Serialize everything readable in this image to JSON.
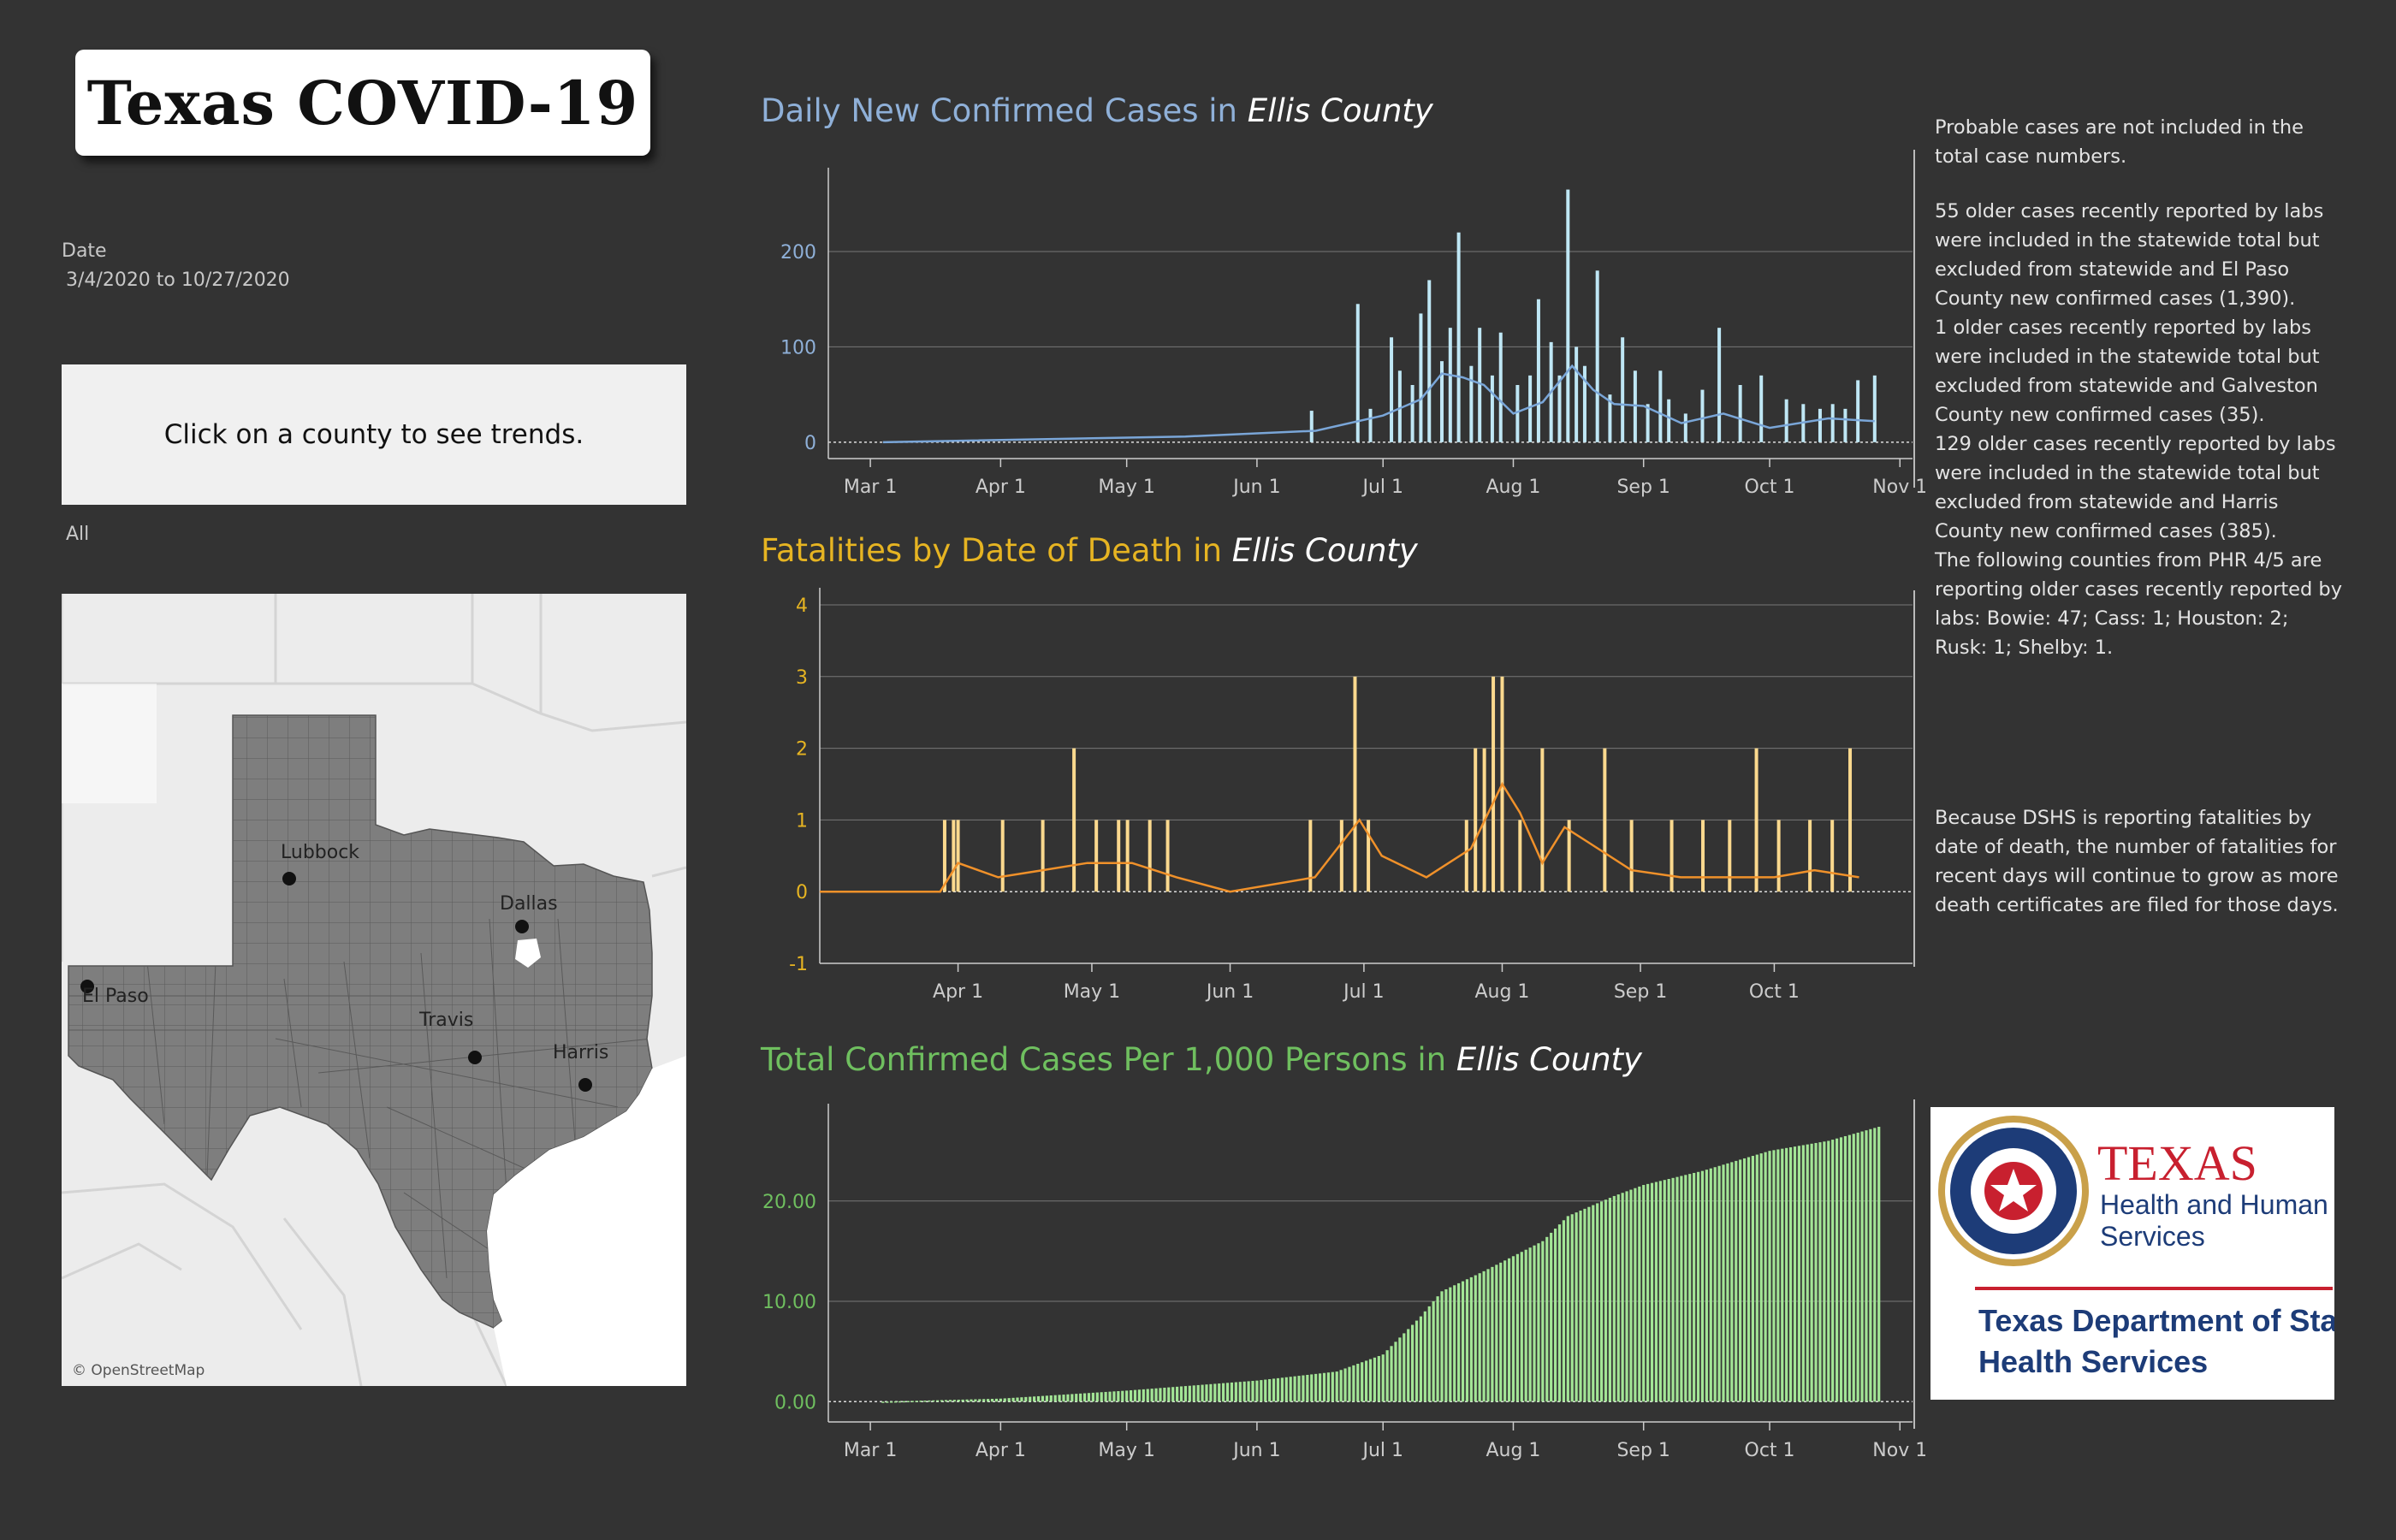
{
  "header": {
    "title": "Texas COVID-19"
  },
  "filters": {
    "date_label": "Date",
    "date_value": "3/4/2020 to 10/27/2020",
    "county_prompt": "Click on a county to see trends.",
    "county_value": "All"
  },
  "map": {
    "attribution": "© OpenStreetMap",
    "cities": [
      "Lubbock",
      "Dallas",
      "El Paso",
      "Travis",
      "Harris"
    ]
  },
  "colors": {
    "background": "#333333",
    "cases_title": "#8fb0d8",
    "cases_bar": "#bfe7f5",
    "cases_line": "#7aa6d8",
    "deaths_title": "#e6b422",
    "deaths_bar": "#fbd98e",
    "deaths_line": "#f0912a",
    "total_title": "#6fbf5f",
    "total_bar": "#a3e596",
    "axis": "#cccccc"
  },
  "charts": {
    "cases": {
      "title_prefix": "Daily New Confirmed Cases in ",
      "county": "Ellis County",
      "yticks": [
        "200",
        "100",
        "0"
      ],
      "xticks": [
        "Mar 1",
        "Apr 1",
        "May 1",
        "Jun 1",
        "Jul 1",
        "Aug 1",
        "Sep 1",
        "Oct 1",
        "Nov 1"
      ]
    },
    "deaths": {
      "title_prefix": "Fatalities by Date of Death in ",
      "county": "Ellis County",
      "yticks": [
        "4",
        "3",
        "2",
        "1",
        "0",
        "-1"
      ],
      "xticks": [
        "Apr 1",
        "May 1",
        "Jun 1",
        "Jul 1",
        "Aug 1",
        "Sep 1",
        "Oct 1"
      ]
    },
    "total": {
      "title_prefix": "Total Confirmed Cases Per 1,000 Persons in ",
      "county": "Ellis County",
      "yticks": [
        "20.00",
        "10.00",
        "0.00"
      ],
      "xticks": [
        "Mar 1",
        "Apr 1",
        "May 1",
        "Jun 1",
        "Jul 1",
        "Aug 1",
        "Sep 1",
        "Oct 1",
        "Nov 1"
      ]
    }
  },
  "chart_data": [
    {
      "type": "bar",
      "title": "Daily New Confirmed Cases in Ellis County",
      "ylim": [
        -10,
        270
      ],
      "xlim": [
        "2020-02-20",
        "2020-11-04"
      ],
      "series": [
        {
          "type": "bar",
          "points": [
            [
              "2020-06-14",
              33
            ],
            [
              "2020-06-25",
              145
            ],
            [
              "2020-06-28",
              35
            ],
            [
              "2020-07-03",
              110
            ],
            [
              "2020-07-05",
              75
            ],
            [
              "2020-07-08",
              60
            ],
            [
              "2020-07-10",
              135
            ],
            [
              "2020-07-12",
              170
            ],
            [
              "2020-07-15",
              85
            ],
            [
              "2020-07-17",
              120
            ],
            [
              "2020-07-19",
              220
            ],
            [
              "2020-07-22",
              80
            ],
            [
              "2020-07-24",
              120
            ],
            [
              "2020-07-27",
              70
            ],
            [
              "2020-07-29",
              115
            ],
            [
              "2020-08-02",
              60
            ],
            [
              "2020-08-05",
              70
            ],
            [
              "2020-08-07",
              150
            ],
            [
              "2020-08-10",
              105
            ],
            [
              "2020-08-12",
              70
            ],
            [
              "2020-08-14",
              265
            ],
            [
              "2020-08-16",
              100
            ],
            [
              "2020-08-18",
              80
            ],
            [
              "2020-08-21",
              180
            ],
            [
              "2020-08-24",
              50
            ],
            [
              "2020-08-27",
              110
            ],
            [
              "2020-08-30",
              75
            ],
            [
              "2020-09-02",
              40
            ],
            [
              "2020-09-05",
              75
            ],
            [
              "2020-09-07",
              45
            ],
            [
              "2020-09-11",
              30
            ],
            [
              "2020-09-15",
              55
            ],
            [
              "2020-09-19",
              120
            ],
            [
              "2020-09-24",
              60
            ],
            [
              "2020-09-29",
              70
            ],
            [
              "2020-10-05",
              45
            ],
            [
              "2020-10-09",
              40
            ],
            [
              "2020-10-13",
              35
            ],
            [
              "2020-10-16",
              40
            ],
            [
              "2020-10-19",
              35
            ],
            [
              "2020-10-22",
              65
            ],
            [
              "2020-10-26",
              70
            ]
          ]
        },
        {
          "type": "line",
          "name": "7-day average",
          "points": [
            [
              "2020-03-04",
              0
            ],
            [
              "2020-05-15",
              6
            ],
            [
              "2020-06-15",
              12
            ],
            [
              "2020-07-01",
              28
            ],
            [
              "2020-07-10",
              45
            ],
            [
              "2020-07-15",
              72
            ],
            [
              "2020-07-20",
              68
            ],
            [
              "2020-07-25",
              60
            ],
            [
              "2020-08-01",
              30
            ],
            [
              "2020-08-08",
              42
            ],
            [
              "2020-08-15",
              80
            ],
            [
              "2020-08-20",
              55
            ],
            [
              "2020-08-25",
              40
            ],
            [
              "2020-09-01",
              38
            ],
            [
              "2020-09-10",
              20
            ],
            [
              "2020-09-20",
              30
            ],
            [
              "2020-10-01",
              15
            ],
            [
              "2020-10-15",
              25
            ],
            [
              "2020-10-26",
              22
            ]
          ]
        }
      ]
    },
    {
      "type": "bar",
      "title": "Fatalities by Date of Death in Ellis County",
      "ylim": [
        -1,
        4
      ],
      "xlim": [
        "2020-03-01",
        "2020-11-01"
      ],
      "series": [
        {
          "type": "bar",
          "points": [
            [
              "2020-03-29",
              1
            ],
            [
              "2020-03-31",
              1
            ],
            [
              "2020-04-01",
              1
            ],
            [
              "2020-04-11",
              1
            ],
            [
              "2020-04-20",
              1
            ],
            [
              "2020-04-27",
              2
            ],
            [
              "2020-05-02",
              1
            ],
            [
              "2020-05-07",
              1
            ],
            [
              "2020-05-09",
              1
            ],
            [
              "2020-05-14",
              1
            ],
            [
              "2020-05-18",
              1
            ],
            [
              "2020-06-19",
              1
            ],
            [
              "2020-06-26",
              1
            ],
            [
              "2020-06-29",
              3
            ],
            [
              "2020-07-02",
              1
            ],
            [
              "2020-07-24",
              1
            ],
            [
              "2020-07-26",
              2
            ],
            [
              "2020-07-28",
              2
            ],
            [
              "2020-07-30",
              3
            ],
            [
              "2020-08-01",
              3
            ],
            [
              "2020-08-05",
              1
            ],
            [
              "2020-08-10",
              2
            ],
            [
              "2020-08-16",
              1
            ],
            [
              "2020-08-24",
              2
            ],
            [
              "2020-08-30",
              1
            ],
            [
              "2020-09-08",
              1
            ],
            [
              "2020-09-15",
              1
            ],
            [
              "2020-09-21",
              1
            ],
            [
              "2020-09-27",
              2
            ],
            [
              "2020-10-02",
              1
            ],
            [
              "2020-10-09",
              1
            ],
            [
              "2020-10-14",
              1
            ],
            [
              "2020-10-18",
              2
            ]
          ]
        },
        {
          "type": "line",
          "name": "7-day average",
          "points": [
            [
              "2020-03-01",
              0
            ],
            [
              "2020-03-28",
              0
            ],
            [
              "2020-04-01",
              0.4
            ],
            [
              "2020-04-10",
              0.2
            ],
            [
              "2020-04-20",
              0.3
            ],
            [
              "2020-04-30",
              0.4
            ],
            [
              "2020-05-10",
              0.4
            ],
            [
              "2020-05-20",
              0.2
            ],
            [
              "2020-06-01",
              0
            ],
            [
              "2020-06-20",
              0.2
            ],
            [
              "2020-06-30",
              1.0
            ],
            [
              "2020-07-05",
              0.5
            ],
            [
              "2020-07-15",
              0.2
            ],
            [
              "2020-07-25",
              0.6
            ],
            [
              "2020-08-01",
              1.5
            ],
            [
              "2020-08-05",
              1.1
            ],
            [
              "2020-08-10",
              0.4
            ],
            [
              "2020-08-15",
              0.9
            ],
            [
              "2020-08-20",
              0.7
            ],
            [
              "2020-08-30",
              0.3
            ],
            [
              "2020-09-10",
              0.2
            ],
            [
              "2020-09-20",
              0.2
            ],
            [
              "2020-10-01",
              0.2
            ],
            [
              "2020-10-10",
              0.3
            ],
            [
              "2020-10-20",
              0.2
            ]
          ]
        }
      ]
    },
    {
      "type": "bar",
      "title": "Total Confirmed Cases Per 1,000 Persons in Ellis County",
      "ylim": [
        -1,
        28
      ],
      "xlim": [
        "2020-02-20",
        "2020-11-04"
      ],
      "series": [
        {
          "type": "bar",
          "points": [
            [
              "2020-03-04",
              0
            ],
            [
              "2020-04-01",
              0.3
            ],
            [
              "2020-05-01",
              1.1
            ],
            [
              "2020-06-01",
              2.1
            ],
            [
              "2020-06-20",
              3.0
            ],
            [
              "2020-07-01",
              4.7
            ],
            [
              "2020-07-10",
              8.5
            ],
            [
              "2020-07-15",
              11.0
            ],
            [
              "2020-07-25",
              13.0
            ],
            [
              "2020-08-01",
              14.5
            ],
            [
              "2020-08-08",
              16.0
            ],
            [
              "2020-08-14",
              18.5
            ],
            [
              "2020-08-25",
              20.5
            ],
            [
              "2020-09-01",
              21.6
            ],
            [
              "2020-09-15",
              23.0
            ],
            [
              "2020-10-01",
              25.0
            ],
            [
              "2020-10-15",
              26.0
            ],
            [
              "2020-10-27",
              27.4
            ]
          ]
        }
      ]
    }
  ],
  "notes": {
    "lines": [
      "Probable cases are not included in the total case numbers.",
      "55 older cases recently reported by labs were included in the statewide total but excluded from statewide and El Paso County new confirmed cases (1,390).",
      "1 older cases recently reported by labs were included in the statewide total but excluded from statewide and Galveston County new confirmed cases (35).",
      "129 older cases recently reported by labs were included in the statewide total but excluded from statewide and Harris County new confirmed cases (385).",
      "The following counties from PHR 4/5 are reporting older cases recently reported by labs: Bowie: 47; Cass: 1; Houston: 2; Rusk: 1; Shelby: 1."
    ],
    "death_note": "Because DSHS is reporting fatalities by date of death, the number of fatalities for recent days will continue to grow as more death certificates are filed for those days."
  },
  "dshs_logo": {
    "line1": "TEXAS",
    "line2": "Health and Human",
    "line3": "Services",
    "line4": "Texas Department of State",
    "line5": "Health Services"
  }
}
